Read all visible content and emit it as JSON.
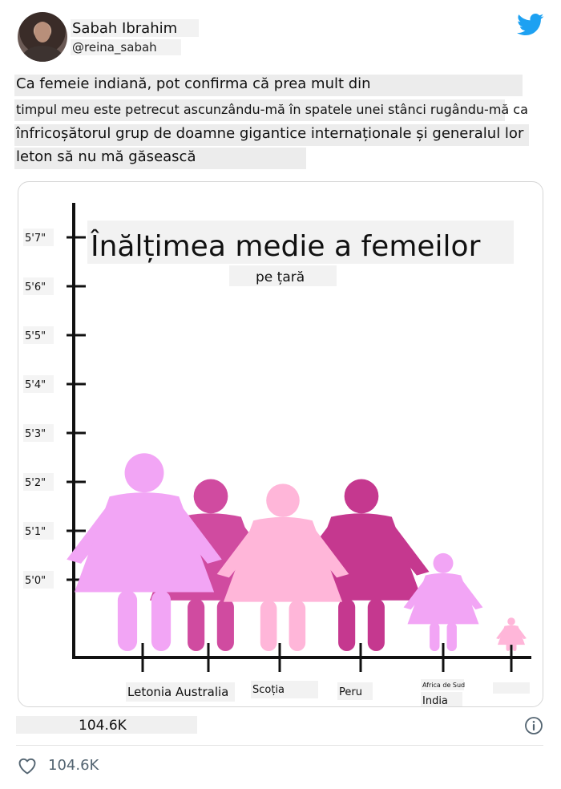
{
  "author": {
    "name": "Sabah Ibrahim",
    "handle": "@reina_sabah",
    "avatar_icon": "avatar-photo"
  },
  "brand": {
    "icon": "twitter-bird-icon",
    "color": "#1da1f2"
  },
  "tweet": {
    "lines": [
      "Ca femeie indiană, pot confirma că prea mult din",
      "timpul meu este petrecut ascunzându-mă în spatele unei stânci rugându-mă ca",
      "înfricoșătorul grup de doamne gigantice internaționale și generalul lor",
      "leton să nu mă găsească"
    ]
  },
  "chart_data": {
    "type": "bar",
    "title": "Înălțimea medie a femeilor",
    "subtitle": "pe țară",
    "y_ticks": [
      "5'7\"",
      "5'6\"",
      "5'5\"",
      "5'4\"",
      "5'3\"",
      "5'2\"",
      "5'1\"",
      "5'0\""
    ],
    "x_labels": [
      {
        "text": "Letonia Australia"
      },
      {
        "text": "Scoția"
      },
      {
        "text": "Peru"
      },
      {
        "text": "Africa de Sud"
      },
      {
        "text": "India"
      },
      {
        "text": ""
      }
    ],
    "figures": [
      {
        "country": "Australia",
        "height_in": 64.2,
        "color": "#d04ba0"
      },
      {
        "country": "Peru",
        "height_in": 64.2,
        "color": "#c5388f"
      },
      {
        "country": "Scoția",
        "height_in": 64.0,
        "color": "#ffb6d9"
      },
      {
        "country": "Letonia",
        "height_in": 65.3,
        "color": "#f2a5f5"
      },
      {
        "country": "India",
        "height_in": 62.0,
        "color": "#f2a5f5"
      },
      {
        "country": "",
        "height_in": 60.0,
        "color": "#ffb6d9"
      }
    ],
    "ylim_in": [
      56.5,
      67.0
    ]
  },
  "stats": {
    "count_text": "104.6K"
  },
  "actions": {
    "likes": "104.6K"
  },
  "icons": {
    "info": "info-icon",
    "heart": "heart-icon"
  }
}
